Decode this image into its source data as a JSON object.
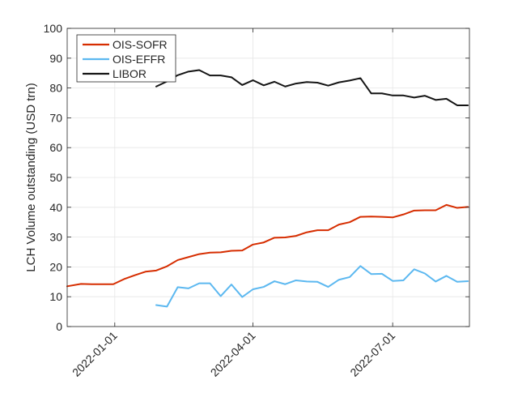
{
  "chart_data": {
    "type": "line",
    "ylabel": "LCH Volume outstanding (USD trn)",
    "xlabel": "",
    "ylim": [
      0,
      100
    ],
    "xlim": [
      "2021-12-01",
      "2022-08-20"
    ],
    "y_ticks": [
      0,
      10,
      20,
      30,
      40,
      50,
      60,
      70,
      80,
      90,
      100
    ],
    "x_ticks": [
      "2022-01-01",
      "2022-04-01",
      "2022-07-01"
    ],
    "x_tick_labels": [
      "2022-01-01",
      "2022-04-01",
      "2022-07-01"
    ],
    "grid": true,
    "legend_position": "top-left",
    "series": [
      {
        "name": "OIS-SOFR",
        "color": "#d62d00",
        "points": [
          [
            "2021-12-01",
            13.5
          ],
          [
            "2021-12-10",
            14.3
          ],
          [
            "2021-12-17",
            14.2
          ],
          [
            "2021-12-24",
            14.2
          ],
          [
            "2021-12-31",
            14.2
          ],
          [
            "2022-01-07",
            15.9
          ],
          [
            "2022-01-14",
            17.2
          ],
          [
            "2022-01-21",
            18.4
          ],
          [
            "2022-01-28",
            18.8
          ],
          [
            "2022-02-04",
            20.2
          ],
          [
            "2022-02-11",
            22.3
          ],
          [
            "2022-02-18",
            23.3
          ],
          [
            "2022-02-25",
            24.3
          ],
          [
            "2022-03-04",
            24.8
          ],
          [
            "2022-03-11",
            24.9
          ],
          [
            "2022-03-18",
            25.4
          ],
          [
            "2022-03-25",
            25.5
          ],
          [
            "2022-04-01",
            27.5
          ],
          [
            "2022-04-08",
            28.2
          ],
          [
            "2022-04-15",
            29.8
          ],
          [
            "2022-04-22",
            29.9
          ],
          [
            "2022-04-29",
            30.4
          ],
          [
            "2022-05-06",
            31.6
          ],
          [
            "2022-05-13",
            32.3
          ],
          [
            "2022-05-20",
            32.3
          ],
          [
            "2022-05-27",
            34.2
          ],
          [
            "2022-06-03",
            35.0
          ],
          [
            "2022-06-10",
            36.8
          ],
          [
            "2022-06-17",
            36.9
          ],
          [
            "2022-06-24",
            36.8
          ],
          [
            "2022-07-01",
            36.6
          ],
          [
            "2022-07-08",
            37.6
          ],
          [
            "2022-07-15",
            38.9
          ],
          [
            "2022-07-22",
            39.0
          ],
          [
            "2022-07-29",
            39.0
          ],
          [
            "2022-08-05",
            40.8
          ],
          [
            "2022-08-12",
            39.8
          ],
          [
            "2022-08-19",
            40.1
          ]
        ]
      },
      {
        "name": "OIS-EFFR",
        "color": "#5cb8f0",
        "points": [
          [
            "2022-01-28",
            7.2
          ],
          [
            "2022-02-04",
            6.7
          ],
          [
            "2022-02-11",
            13.2
          ],
          [
            "2022-02-18",
            12.8
          ],
          [
            "2022-02-25",
            14.5
          ],
          [
            "2022-03-04",
            14.5
          ],
          [
            "2022-03-11",
            10.2
          ],
          [
            "2022-03-18",
            14.1
          ],
          [
            "2022-03-25",
            9.9
          ],
          [
            "2022-04-01",
            12.5
          ],
          [
            "2022-04-08",
            13.3
          ],
          [
            "2022-04-15",
            15.2
          ],
          [
            "2022-04-22",
            14.2
          ],
          [
            "2022-04-29",
            15.5
          ],
          [
            "2022-05-06",
            15.1
          ],
          [
            "2022-05-13",
            15.0
          ],
          [
            "2022-05-20",
            13.3
          ],
          [
            "2022-05-27",
            15.7
          ],
          [
            "2022-06-03",
            16.6
          ],
          [
            "2022-06-10",
            20.3
          ],
          [
            "2022-06-17",
            17.6
          ],
          [
            "2022-06-24",
            17.7
          ],
          [
            "2022-07-01",
            15.3
          ],
          [
            "2022-07-08",
            15.5
          ],
          [
            "2022-07-15",
            19.2
          ],
          [
            "2022-07-22",
            17.8
          ],
          [
            "2022-07-29",
            15.1
          ],
          [
            "2022-08-05",
            17.0
          ],
          [
            "2022-08-12",
            15.0
          ],
          [
            "2022-08-19",
            15.2
          ]
        ]
      },
      {
        "name": "LIBOR",
        "color": "#141414",
        "points": [
          [
            "2022-01-28",
            80.5
          ],
          [
            "2022-02-04",
            82.2
          ],
          [
            "2022-02-11",
            84.3
          ],
          [
            "2022-02-18",
            85.5
          ],
          [
            "2022-02-25",
            86.0
          ],
          [
            "2022-03-04",
            84.2
          ],
          [
            "2022-03-11",
            84.2
          ],
          [
            "2022-03-18",
            83.6
          ],
          [
            "2022-03-25",
            81.0
          ],
          [
            "2022-04-01",
            82.6
          ],
          [
            "2022-04-08",
            80.9
          ],
          [
            "2022-04-15",
            82.1
          ],
          [
            "2022-04-22",
            80.5
          ],
          [
            "2022-04-29",
            81.5
          ],
          [
            "2022-05-06",
            82.0
          ],
          [
            "2022-05-13",
            81.8
          ],
          [
            "2022-05-20",
            80.8
          ],
          [
            "2022-05-27",
            81.9
          ],
          [
            "2022-06-03",
            82.5
          ],
          [
            "2022-06-10",
            83.3
          ],
          [
            "2022-06-17",
            78.2
          ],
          [
            "2022-06-24",
            78.2
          ],
          [
            "2022-07-01",
            77.5
          ],
          [
            "2022-07-08",
            77.5
          ],
          [
            "2022-07-15",
            76.8
          ],
          [
            "2022-07-22",
            77.4
          ],
          [
            "2022-07-29",
            76.0
          ],
          [
            "2022-08-05",
            76.4
          ],
          [
            "2022-08-12",
            74.2
          ],
          [
            "2022-08-19",
            74.2
          ]
        ]
      }
    ]
  }
}
